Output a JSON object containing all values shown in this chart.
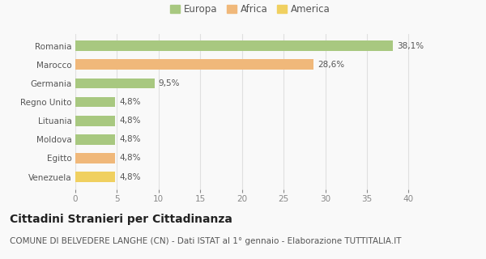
{
  "categories": [
    "Venezuela",
    "Egitto",
    "Moldova",
    "Lituania",
    "Regno Unito",
    "Germania",
    "Marocco",
    "Romania"
  ],
  "values": [
    4.8,
    4.8,
    4.8,
    4.8,
    4.8,
    9.5,
    28.6,
    38.1
  ],
  "labels": [
    "4,8%",
    "4,8%",
    "4,8%",
    "4,8%",
    "4,8%",
    "9,5%",
    "28,6%",
    "38,1%"
  ],
  "colors": [
    "#f0d060",
    "#f0b87a",
    "#a8c880",
    "#a8c880",
    "#a8c880",
    "#a8c880",
    "#f0b87a",
    "#a8c880"
  ],
  "legend_labels": [
    "Europa",
    "Africa",
    "America"
  ],
  "legend_colors": [
    "#a8c880",
    "#f0b87a",
    "#f0d060"
  ],
  "title": "Cittadini Stranieri per Cittadinanza",
  "subtitle": "COMUNE DI BELVEDERE LANGHE (CN) - Dati ISTAT al 1° gennaio - Elaborazione TUTTITALIA.IT",
  "xlim": [
    0,
    42
  ],
  "xticks": [
    0,
    5,
    10,
    15,
    20,
    25,
    30,
    35,
    40
  ],
  "background_color": "#f9f9f9",
  "grid_color": "#e0e0e0",
  "bar_height": 0.55,
  "title_fontsize": 10,
  "subtitle_fontsize": 7.5,
  "label_fontsize": 7.5,
  "tick_fontsize": 7.5,
  "legend_fontsize": 8.5,
  "ytick_fontsize": 7.5
}
